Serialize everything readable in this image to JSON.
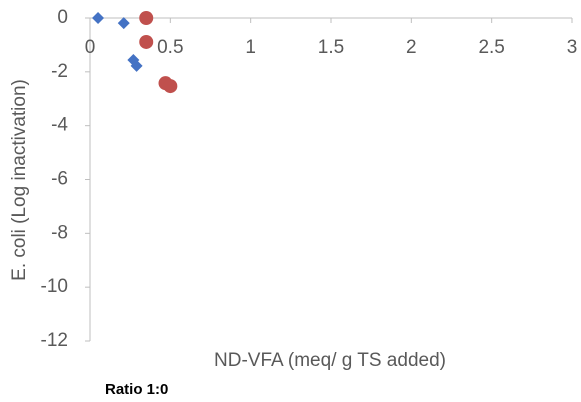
{
  "chart_data": {
    "type": "scatter",
    "x_label": "ND-VFA (meq/ g TS added)",
    "y_label": "E. coli (Log inactivation)",
    "annotation": "Ratio 1:0",
    "xlim": [
      0,
      3
    ],
    "xticks": [
      0,
      0.5,
      1,
      1.5,
      2,
      2.5,
      3
    ],
    "ylim": [
      -12,
      0
    ],
    "yticks": [
      0,
      -2,
      -4,
      -6,
      -8,
      -10,
      -12
    ],
    "series": [
      {
        "color": "#4472c4",
        "marker": "diamond",
        "x": [
          0.05,
          0.21,
          0.27,
          0.29
        ],
        "values": [
          0,
          -0.19,
          -1.56,
          -1.78
        ]
      },
      {
        "color": "#c0504d",
        "marker": "circle",
        "x": [
          0.35,
          0.35,
          0.47,
          0.5
        ],
        "values": [
          0,
          -0.89,
          -2.42,
          -2.53
        ]
      }
    ]
  }
}
